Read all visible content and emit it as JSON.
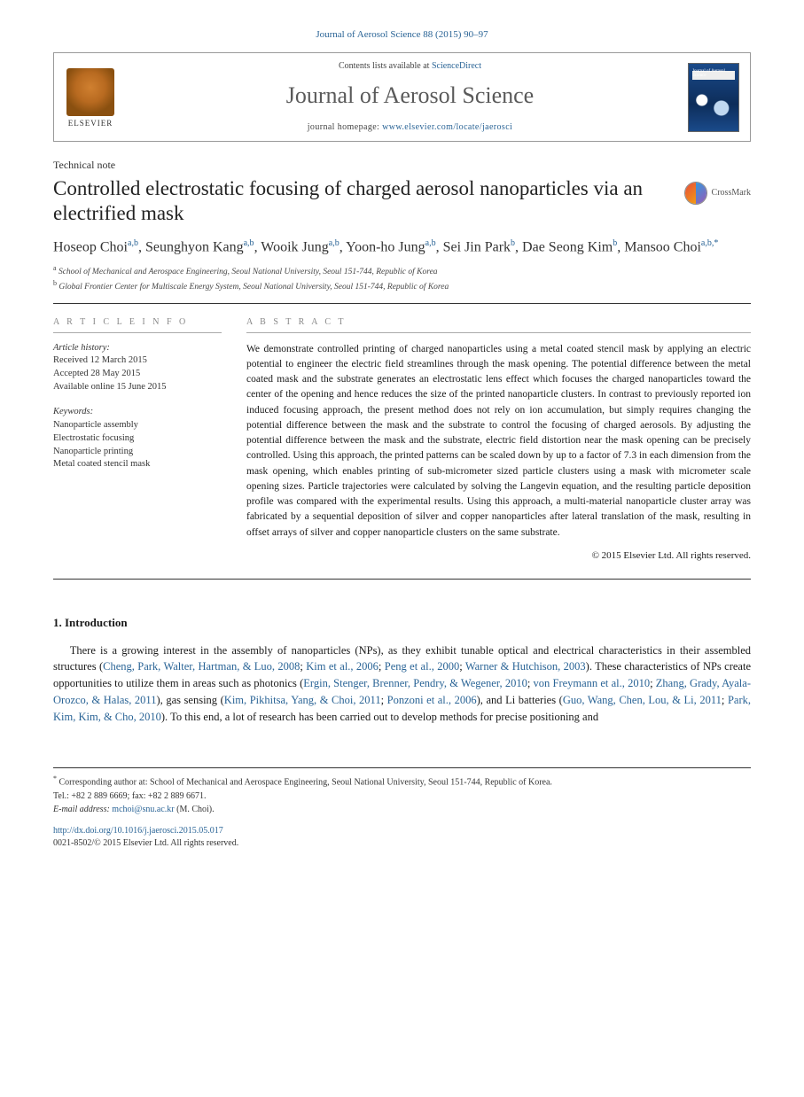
{
  "header": {
    "citation": "Journal of Aerosol Science 88 (2015) 90–97",
    "contents_prefix": "Contents lists available at ",
    "contents_link": "ScienceDirect",
    "journal_title": "Journal of Aerosol Science",
    "homepage_prefix": "journal homepage: ",
    "homepage_url": "www.elsevier.com/locate/jaerosci",
    "publisher_name": "ELSEVIER",
    "cover_text": "Journal of Aerosol Science"
  },
  "article": {
    "type": "Technical note",
    "title": "Controlled electrostatic focusing of charged aerosol nanoparticles via an electrified mask",
    "crossmark": "CrossMark"
  },
  "authors": {
    "list": "Hoseop Choi",
    "a1_sup": "a,b",
    "a2": ", Seunghyon Kang",
    "a2_sup": "a,b",
    "a3": ", Wooik Jung",
    "a3_sup": "a,b",
    "a4": ", Yoon-ho Jung",
    "a4_sup": "a,b",
    "a5": ", Sei Jin Park",
    "a5_sup": "b",
    "a6": ", Dae Seong Kim",
    "a6_sup": "b",
    "a7": ", Mansoo Choi",
    "a7_sup": "a,b,",
    "corr": "*"
  },
  "affiliations": {
    "a": "School of Mechanical and Aerospace Engineering, Seoul National University, Seoul 151-744, Republic of Korea",
    "b": "Global Frontier Center for Multiscale Energy System, Seoul National University, Seoul 151-744, Republic of Korea"
  },
  "article_info": {
    "heading": "A R T I C L E   I N F O",
    "history_label": "Article history:",
    "received": "Received 12 March 2015",
    "accepted": "Accepted 28 May 2015",
    "online": "Available online 15 June 2015",
    "keywords_label": "Keywords:",
    "kw1": "Nanoparticle assembly",
    "kw2": "Electrostatic focusing",
    "kw3": "Nanoparticle printing",
    "kw4": "Metal coated stencil mask"
  },
  "abstract": {
    "heading": "A B S T R A C T",
    "text": "We demonstrate controlled printing of charged nanoparticles using a metal coated stencil mask by applying an electric potential to engineer the electric field streamlines through the mask opening. The potential difference between the metal coated mask and the substrate generates an electrostatic lens effect which focuses the charged nanoparticles toward the center of the opening and hence reduces the size of the printed nanoparticle clusters. In contrast to previously reported ion induced focusing approach, the present method does not rely on ion accumulation, but simply requires changing the potential difference between the mask and the substrate to control the focusing of charged aerosols. By adjusting the potential difference between the mask and the substrate, electric field distortion near the mask opening can be precisely controlled. Using this approach, the printed patterns can be scaled down by up to a factor of 7.3 in each dimension from the mask opening, which enables printing of sub-micrometer sized particle clusters using a mask with micrometer scale opening sizes. Particle trajectories were calculated by solving the Langevin equation, and the resulting particle deposition profile was compared with the experimental results. Using this approach, a multi-material nanoparticle cluster array was fabricated by a sequential deposition of silver and copper nanoparticles after lateral translation of the mask, resulting in offset arrays of silver and copper nanoparticle clusters on the same substrate.",
    "copyright": "© 2015 Elsevier Ltd. All rights reserved."
  },
  "intro": {
    "heading": "1.  Introduction",
    "p1_a": "There is a growing interest in the assembly of nanoparticles (NPs), as they exhibit tunable optical and electrical characteristics in their assembled structures (",
    "cite1": "Cheng, Park, Walter, Hartman, & Luo, 2008",
    "sep1": "; ",
    "cite2": "Kim et al., 2006",
    "sep2": "; ",
    "cite3": "Peng et al., 2000",
    "sep3": "; ",
    "cite4": "Warner & Hutchison, 2003",
    "p1_b": "). These characteristics of NPs create opportunities to utilize them in areas such as photonics (",
    "cite5": "Ergin, Stenger, Brenner, Pendry, & Wegener, 2010",
    "sep5": "; ",
    "cite6": "von Freymann et al., 2010",
    "sep6": "; ",
    "cite7": "Zhang, Grady, Ayala-Orozco, & Halas, 2011",
    "p1_c": "), gas sensing (",
    "cite8": "Kim, Pikhitsa, Yang, & Choi, 2011",
    "sep8": "; ",
    "cite9": "Ponzoni et al., 2006",
    "p1_d": "), and Li batteries (",
    "cite10": "Guo, Wang, Chen, Lou, & Li, 2011",
    "sep10": "; ",
    "cite11": "Park, Kim, Kim, & Cho, 2010",
    "p1_e": "). To this end, a lot of research has been carried out to develop methods for precise positioning and"
  },
  "footnotes": {
    "corr_prefix": "Corresponding author at: School of Mechanical and Aerospace Engineering, Seoul National University, Seoul 151-744, Republic of Korea.",
    "tel": "Tel.: +82 2 889 6669; fax: +82 2 889 6671.",
    "email_label": "E-mail address: ",
    "email": "mchoi@snu.ac.kr",
    "email_suffix": " (M. Choi).",
    "doi": "http://dx.doi.org/10.1016/j.jaerosci.2015.05.017",
    "issn": "0021-8502/© 2015 Elsevier Ltd. All rights reserved."
  },
  "colors": {
    "link": "#2a6496",
    "text": "#1a1a1a",
    "muted": "#888888"
  }
}
